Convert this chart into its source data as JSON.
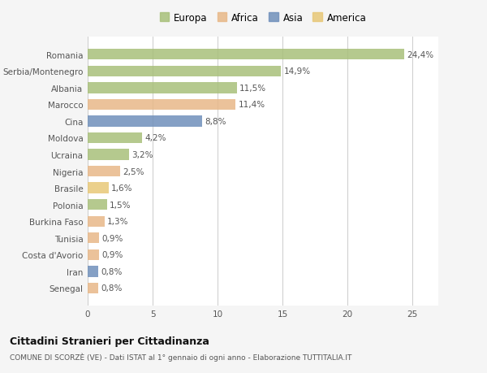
{
  "categories": [
    "Romania",
    "Serbia/Montenegro",
    "Albania",
    "Marocco",
    "Cina",
    "Moldova",
    "Ucraina",
    "Nigeria",
    "Brasile",
    "Polonia",
    "Burkina Faso",
    "Tunisia",
    "Costa d'Avorio",
    "Iran",
    "Senegal"
  ],
  "values": [
    24.4,
    14.9,
    11.5,
    11.4,
    8.8,
    4.2,
    3.2,
    2.5,
    1.6,
    1.5,
    1.3,
    0.9,
    0.9,
    0.8,
    0.8
  ],
  "labels": [
    "24,4%",
    "14,9%",
    "11,5%",
    "11,4%",
    "8,8%",
    "4,2%",
    "3,2%",
    "2,5%",
    "1,6%",
    "1,5%",
    "1,3%",
    "0,9%",
    "0,9%",
    "0,8%",
    "0,8%"
  ],
  "colors": [
    "#a8c07a",
    "#a8c07a",
    "#a8c07a",
    "#e8b888",
    "#7090bb",
    "#a8c07a",
    "#a8c07a",
    "#e8b888",
    "#e8c878",
    "#a8c07a",
    "#e8b888",
    "#e8b888",
    "#e8b888",
    "#7090bb",
    "#e8b888"
  ],
  "continent_colors": {
    "Europa": "#a8c07a",
    "Africa": "#e8b888",
    "Asia": "#7090bb",
    "America": "#e8c878"
  },
  "xlim": [
    0,
    27
  ],
  "xticks": [
    0,
    5,
    10,
    15,
    20,
    25
  ],
  "background_color": "#f5f5f5",
  "bar_background": "#ffffff",
  "title": "Cittadini Stranieri per Cittadinanza",
  "subtitle": "COMUNE DI SCORZÈ (VE) - Dati ISTAT al 1° gennaio di ogni anno - Elaborazione TUTTITALIA.IT",
  "grid_color": "#cccccc",
  "text_color": "#555555",
  "label_fontsize": 7.5,
  "tick_fontsize": 7.5,
  "legend_fontsize": 8.5
}
